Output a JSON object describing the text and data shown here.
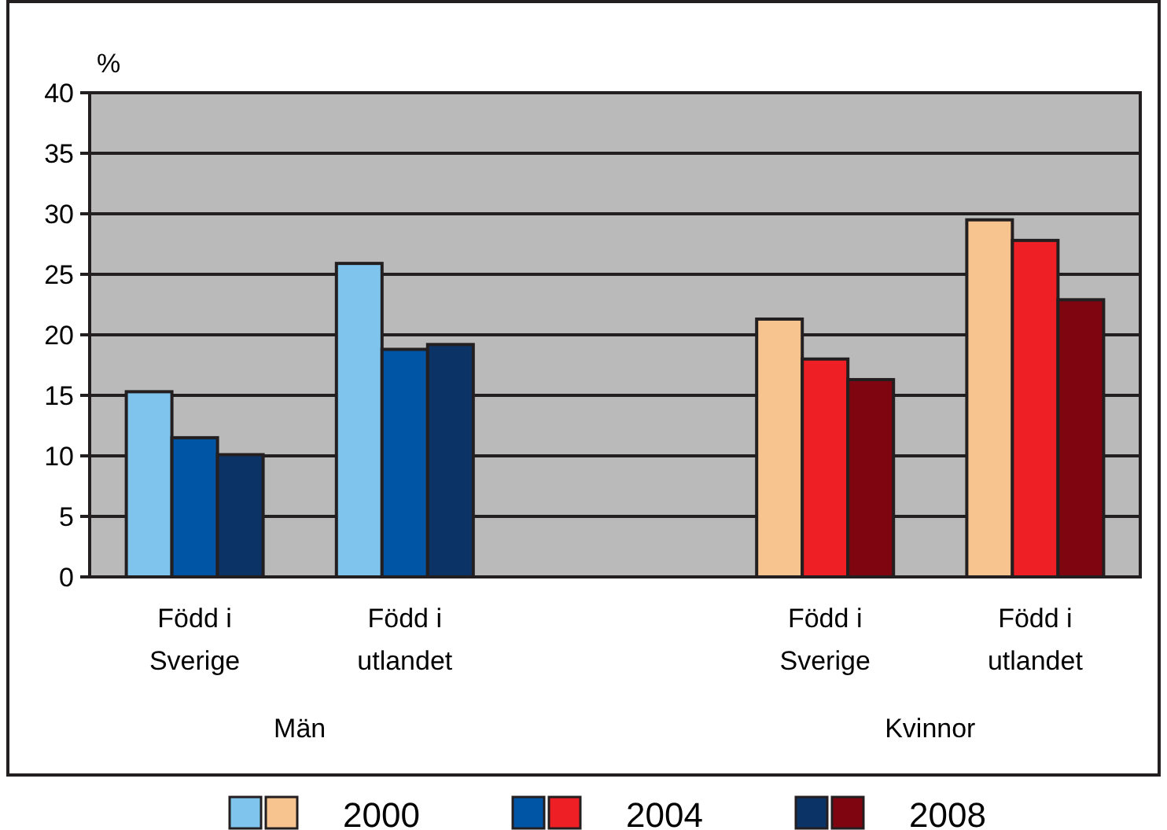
{
  "chart_data": {
    "type": "bar",
    "ylabel": "%",
    "categories": [
      "Född i\nSverige",
      "Född i\nutlandet",
      null,
      "Född i\nSverige",
      "Född i\nutlandet"
    ],
    "series": [
      {
        "name": "2000",
        "colors": [
          "#7fc4ec",
          "#7fc4ec",
          null,
          "#f7c48f",
          "#f7c48f"
        ],
        "values": [
          15.3,
          25.9,
          null,
          21.3,
          29.5
        ]
      },
      {
        "name": "2004",
        "colors": [
          "#0055a5",
          "#0055a5",
          null,
          "#ee1f25",
          "#ee1f25"
        ],
        "values": [
          11.5,
          18.8,
          null,
          18.0,
          27.8
        ]
      },
      {
        "name": "2008",
        "colors": [
          "#0c3366",
          "#0c3366",
          null,
          "#7f0511",
          "#7f0511"
        ],
        "values": [
          10.1,
          19.2,
          null,
          16.3,
          22.9
        ]
      }
    ],
    "annotations": [
      "Män",
      "Kvinnor"
    ],
    "ylim": [
      0,
      40
    ],
    "yticks": [
      0,
      5,
      10,
      15,
      20,
      25,
      30,
      35,
      40
    ],
    "grid": "y",
    "legend": "bottom"
  }
}
